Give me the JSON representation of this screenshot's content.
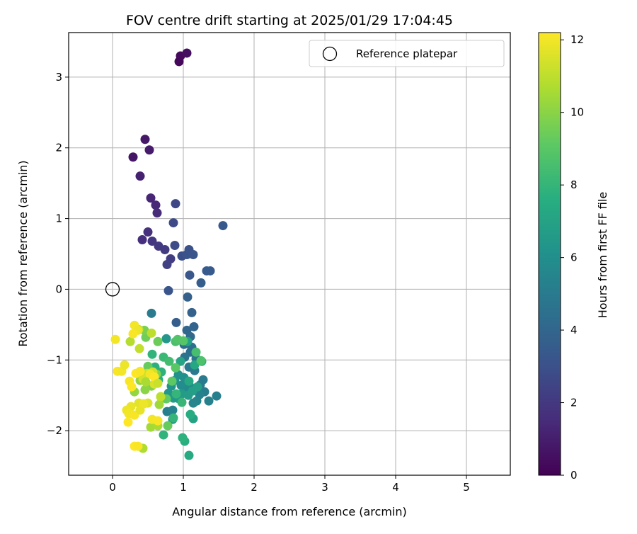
{
  "chart_data": {
    "type": "scatter",
    "title": "FOV centre drift starting at 2025/01/29 17:04:45",
    "xlabel": "Angular distance from reference (arcmin)",
    "ylabel": "Rotation from reference (arcmin)",
    "xlim": [
      -0.62,
      5.62
    ],
    "ylim": [
      -2.63,
      3.63
    ],
    "xticks": [
      0,
      1,
      2,
      3,
      4,
      5
    ],
    "yticks": [
      -2,
      -1,
      0,
      1,
      2,
      3
    ],
    "xtick_labels": [
      "0",
      "1",
      "2",
      "3",
      "4",
      "5"
    ],
    "ytick_labels": [
      "−2",
      "−1",
      "0",
      "1",
      "2",
      "3"
    ],
    "grid": true,
    "legend_position": "top-right",
    "reference": {
      "name": "Reference platepar",
      "x": 0,
      "y": 0
    },
    "colorbar": {
      "label": "Hours from first FF file",
      "colormap": "viridis",
      "range": [
        0,
        12.2
      ],
      "ticks": [
        0,
        2,
        4,
        6,
        8,
        10,
        12
      ],
      "tick_labels": [
        "0",
        "2",
        "4",
        "6",
        "8",
        "10",
        "12"
      ]
    },
    "series": [
      {
        "x": 0.94,
        "y": 3.22,
        "c": 0.2
      },
      {
        "x": 0.96,
        "y": 3.3,
        "c": 0.3
      },
      {
        "x": 1.05,
        "y": 3.34,
        "c": 0.5
      },
      {
        "x": 0.29,
        "y": 1.87,
        "c": 0.7
      },
      {
        "x": 0.46,
        "y": 2.12,
        "c": 0.8
      },
      {
        "x": 0.52,
        "y": 1.97,
        "c": 0.9
      },
      {
        "x": 0.39,
        "y": 1.6,
        "c": 1.1
      },
      {
        "x": 0.54,
        "y": 1.29,
        "c": 1.3
      },
      {
        "x": 0.61,
        "y": 1.19,
        "c": 1.4
      },
      {
        "x": 0.63,
        "y": 1.08,
        "c": 1.5
      },
      {
        "x": 0.42,
        "y": 0.7,
        "c": 1.6
      },
      {
        "x": 0.5,
        "y": 0.81,
        "c": 1.7
      },
      {
        "x": 0.56,
        "y": 0.68,
        "c": 1.9
      },
      {
        "x": 0.65,
        "y": 0.61,
        "c": 2.0
      },
      {
        "x": 0.74,
        "y": 0.56,
        "c": 2.1
      },
      {
        "x": 0.82,
        "y": 0.43,
        "c": 2.2
      },
      {
        "x": 0.77,
        "y": 0.35,
        "c": 2.3
      },
      {
        "x": 0.89,
        "y": 1.21,
        "c": 2.6
      },
      {
        "x": 0.86,
        "y": 0.94,
        "c": 2.7
      },
      {
        "x": 0.88,
        "y": 0.62,
        "c": 2.8
      },
      {
        "x": 0.98,
        "y": 0.47,
        "c": 2.9
      },
      {
        "x": 1.08,
        "y": 0.56,
        "c": 3.0
      },
      {
        "x": 1.05,
        "y": 0.49,
        "c": 3.1
      },
      {
        "x": 1.14,
        "y": 0.49,
        "c": 3.2
      },
      {
        "x": 1.09,
        "y": 0.2,
        "c": 3.3
      },
      {
        "x": 1.56,
        "y": 0.9,
        "c": 3.4
      },
      {
        "x": 1.33,
        "y": 0.26,
        "c": 3.5
      },
      {
        "x": 1.38,
        "y": 0.26,
        "c": 3.5
      },
      {
        "x": 1.25,
        "y": 0.09,
        "c": 3.6
      },
      {
        "x": 0.79,
        "y": -0.02,
        "c": 3.2
      },
      {
        "x": 1.06,
        "y": -0.11,
        "c": 3.7
      },
      {
        "x": 1.12,
        "y": -0.33,
        "c": 3.8
      },
      {
        "x": 0.9,
        "y": -0.47,
        "c": 3.6
      },
      {
        "x": 1.15,
        "y": -0.53,
        "c": 3.9
      },
      {
        "x": 1.05,
        "y": -0.58,
        "c": 4.0
      },
      {
        "x": 1.1,
        "y": -0.67,
        "c": 4.1
      },
      {
        "x": 1.01,
        "y": -0.78,
        "c": 4.3
      },
      {
        "x": 1.12,
        "y": -0.82,
        "c": 4.4
      },
      {
        "x": 1.1,
        "y": -0.89,
        "c": 4.5
      },
      {
        "x": 1.02,
        "y": -0.96,
        "c": 4.6
      },
      {
        "x": 1.18,
        "y": -0.98,
        "c": 4.7
      },
      {
        "x": 1.08,
        "y": -1.1,
        "c": 4.8
      },
      {
        "x": 1.16,
        "y": -1.15,
        "c": 4.9
      },
      {
        "x": 1.28,
        "y": -1.28,
        "c": 5.0
      },
      {
        "x": 1.24,
        "y": -1.35,
        "c": 5.0
      },
      {
        "x": 1.3,
        "y": -1.45,
        "c": 5.1
      },
      {
        "x": 1.47,
        "y": -1.51,
        "c": 5.2
      },
      {
        "x": 1.36,
        "y": -1.58,
        "c": 5.3
      },
      {
        "x": 1.23,
        "y": -1.49,
        "c": 5.4
      },
      {
        "x": 1.19,
        "y": -1.58,
        "c": 5.5
      },
      {
        "x": 1.14,
        "y": -1.61,
        "c": 5.6
      },
      {
        "x": 1.04,
        "y": -1.42,
        "c": 5.7
      },
      {
        "x": 1.09,
        "y": -1.37,
        "c": 5.8
      },
      {
        "x": 0.97,
        "y": -1.36,
        "c": 5.9
      },
      {
        "x": 1.01,
        "y": -1.25,
        "c": 6.0
      },
      {
        "x": 0.93,
        "y": -1.21,
        "c": 6.1
      },
      {
        "x": 0.88,
        "y": -1.29,
        "c": 6.2
      },
      {
        "x": 0.83,
        "y": -1.37,
        "c": 6.3
      },
      {
        "x": 0.79,
        "y": -1.47,
        "c": 6.4
      },
      {
        "x": 0.86,
        "y": -1.54,
        "c": 6.5
      },
      {
        "x": 0.94,
        "y": -1.55,
        "c": 6.5
      },
      {
        "x": 0.98,
        "y": -1.48,
        "c": 6.6
      },
      {
        "x": 1.07,
        "y": -1.5,
        "c": 6.7
      },
      {
        "x": 1.13,
        "y": -1.44,
        "c": 6.8
      },
      {
        "x": 1.2,
        "y": -1.38,
        "c": 6.9
      },
      {
        "x": 1.14,
        "y": -1.83,
        "c": 7.0
      },
      {
        "x": 0.77,
        "y": -1.73,
        "c": 5.2
      },
      {
        "x": 0.85,
        "y": -1.71,
        "c": 5.4
      },
      {
        "x": 0.85,
        "y": -1.84,
        "c": 6.0
      },
      {
        "x": 0.55,
        "y": -0.34,
        "c": 5.0
      },
      {
        "x": 0.76,
        "y": -0.7,
        "c": 6.4
      },
      {
        "x": 1.06,
        "y": -0.74,
        "c": 7.0
      },
      {
        "x": 1.16,
        "y": -1.07,
        "c": 7.2
      },
      {
        "x": 1.26,
        "y": -1.02,
        "c": 7.4
      },
      {
        "x": 0.96,
        "y": -1.02,
        "c": 7.1
      },
      {
        "x": 1.08,
        "y": -1.3,
        "c": 7.3
      },
      {
        "x": 1.1,
        "y": -1.77,
        "c": 7.5
      },
      {
        "x": 1.08,
        "y": -2.35,
        "c": 7.4
      },
      {
        "x": 1.02,
        "y": -2.15,
        "c": 7.6
      },
      {
        "x": 0.99,
        "y": -2.1,
        "c": 7.8
      },
      {
        "x": 0.72,
        "y": -2.06,
        "c": 7.9
      },
      {
        "x": 0.86,
        "y": -1.82,
        "c": 8.0
      },
      {
        "x": 0.98,
        "y": -1.6,
        "c": 8.1
      },
      {
        "x": 0.9,
        "y": -1.48,
        "c": 8.0
      },
      {
        "x": 0.65,
        "y": -1.28,
        "c": 7.6
      },
      {
        "x": 0.69,
        "y": -1.17,
        "c": 7.8
      },
      {
        "x": 0.6,
        "y": -1.1,
        "c": 7.7
      },
      {
        "x": 0.56,
        "y": -0.92,
        "c": 7.9
      },
      {
        "x": 0.72,
        "y": -0.96,
        "c": 8.2
      },
      {
        "x": 0.8,
        "y": -1.02,
        "c": 8.4
      },
      {
        "x": 0.89,
        "y": -0.74,
        "c": 8.6
      },
      {
        "x": 0.92,
        "y": -0.71,
        "c": 8.8
      },
      {
        "x": 1.0,
        "y": -0.73,
        "c": 8.9
      },
      {
        "x": 1.18,
        "y": -0.89,
        "c": 8.5
      },
      {
        "x": 1.25,
        "y": -1.01,
        "c": 8.7
      },
      {
        "x": 0.89,
        "y": -1.11,
        "c": 9.0
      },
      {
        "x": 0.84,
        "y": -1.3,
        "c": 9.1
      },
      {
        "x": 0.76,
        "y": -1.55,
        "c": 9.2
      },
      {
        "x": 0.78,
        "y": -1.93,
        "c": 9.3
      },
      {
        "x": 0.64,
        "y": -0.74,
        "c": 9.4
      },
      {
        "x": 0.47,
        "y": -0.68,
        "c": 9.5
      },
      {
        "x": 0.45,
        "y": -0.58,
        "c": 9.7
      },
      {
        "x": 0.5,
        "y": -1.09,
        "c": 9.3
      },
      {
        "x": 0.62,
        "y": -1.2,
        "c": 9.8
      },
      {
        "x": 0.55,
        "y": -1.37,
        "c": 9.9
      },
      {
        "x": 0.46,
        "y": -1.42,
        "c": 10.0
      },
      {
        "x": 0.39,
        "y": -1.29,
        "c": 10.1
      },
      {
        "x": 0.31,
        "y": -1.45,
        "c": 10.2
      },
      {
        "x": 0.68,
        "y": -1.52,
        "c": 10.3
      },
      {
        "x": 0.66,
        "y": -1.63,
        "c": 10.4
      },
      {
        "x": 0.54,
        "y": -1.95,
        "c": 10.5
      },
      {
        "x": 0.64,
        "y": -1.93,
        "c": 10.6
      },
      {
        "x": 0.43,
        "y": -2.25,
        "c": 10.7
      },
      {
        "x": 0.25,
        "y": -0.74,
        "c": 10.8
      },
      {
        "x": 0.37,
        "y": -0.57,
        "c": 10.9
      },
      {
        "x": 0.55,
        "y": -0.62,
        "c": 11.0
      },
      {
        "x": 0.38,
        "y": -0.84,
        "c": 11.1
      },
      {
        "x": 0.49,
        "y": -1.19,
        "c": 11.2
      },
      {
        "x": 0.57,
        "y": -1.17,
        "c": 11.3
      },
      {
        "x": 0.43,
        "y": -1.27,
        "c": 11.4
      },
      {
        "x": 0.59,
        "y": -1.34,
        "c": 11.5
      },
      {
        "x": 0.68,
        "y": -1.52,
        "c": 11.0
      },
      {
        "x": 0.5,
        "y": -1.61,
        "c": 11.6
      },
      {
        "x": 0.37,
        "y": -1.61,
        "c": 11.7
      },
      {
        "x": 0.26,
        "y": -1.66,
        "c": 11.8
      },
      {
        "x": 0.2,
        "y": -1.71,
        "c": 11.9
      },
      {
        "x": 0.23,
        "y": -1.76,
        "c": 12.0
      },
      {
        "x": 0.31,
        "y": -1.78,
        "c": 12.1
      },
      {
        "x": 0.39,
        "y": -1.71,
        "c": 11.8
      },
      {
        "x": 0.44,
        "y": -1.62,
        "c": 11.9
      },
      {
        "x": 0.56,
        "y": -1.84,
        "c": 12.0
      },
      {
        "x": 0.64,
        "y": -1.86,
        "c": 12.1
      },
      {
        "x": 0.22,
        "y": -1.88,
        "c": 12.2
      },
      {
        "x": 0.31,
        "y": -2.22,
        "c": 12.2
      },
      {
        "x": 0.36,
        "y": -2.22,
        "c": 12.1
      },
      {
        "x": 0.04,
        "y": -0.71,
        "c": 12.0
      },
      {
        "x": 0.07,
        "y": -1.16,
        "c": 12.1
      },
      {
        "x": 0.13,
        "y": -1.16,
        "c": 12.0
      },
      {
        "x": 0.17,
        "y": -1.07,
        "c": 11.9
      },
      {
        "x": 0.24,
        "y": -1.3,
        "c": 12.1
      },
      {
        "x": 0.27,
        "y": -1.38,
        "c": 12.2
      },
      {
        "x": 0.33,
        "y": -1.19,
        "c": 12.2
      },
      {
        "x": 0.39,
        "y": -1.16,
        "c": 12.1
      },
      {
        "x": 0.31,
        "y": -0.51,
        "c": 12.0
      },
      {
        "x": 0.36,
        "y": -0.58,
        "c": 11.9
      },
      {
        "x": 0.29,
        "y": -0.63,
        "c": 12.1
      },
      {
        "x": 0.53,
        "y": -1.2,
        "c": 12.0
      },
      {
        "x": 0.59,
        "y": -1.24,
        "c": 12.2
      },
      {
        "x": 0.64,
        "y": -1.33,
        "c": 11.2
      },
      {
        "x": 0.47,
        "y": -1.31,
        "c": 10.6
      }
    ]
  }
}
